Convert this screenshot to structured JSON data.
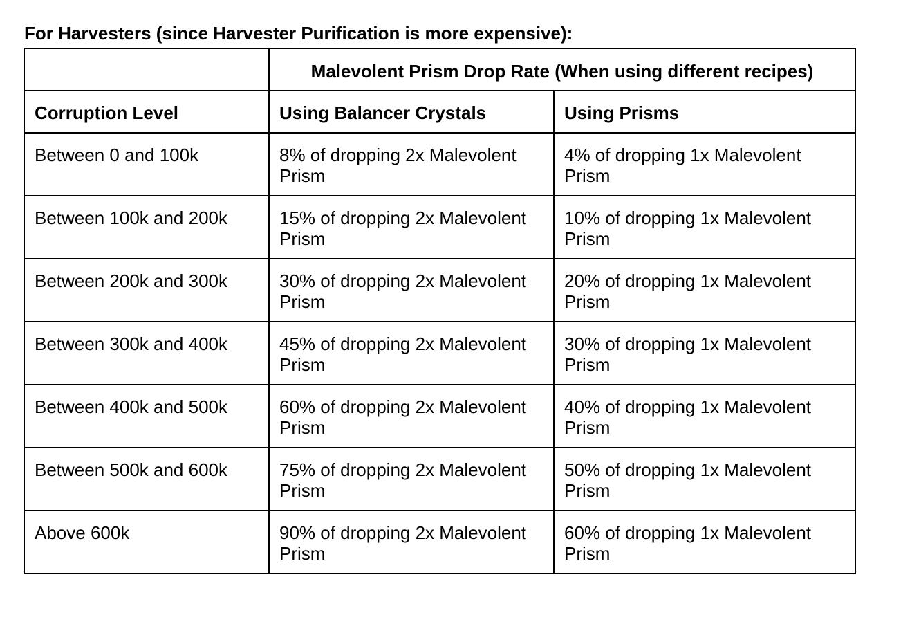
{
  "title": "For Harvesters (since Harvester Purification is more expensive):",
  "table": {
    "group_header": "Malevolent Prism Drop Rate (When using different recipes)",
    "headers": [
      "Corruption Level",
      "Using Balancer Crystals",
      "Using Prisms"
    ],
    "rows": [
      [
        "Between 0 and 100k",
        "8% of dropping 2x Malevolent Prism",
        "4% of dropping 1x Malevolent Prism"
      ],
      [
        "Between 100k and 200k",
        "15% of dropping 2x Malevolent Prism",
        "10% of dropping 1x Malevolent Prism"
      ],
      [
        "Between 200k and 300k",
        "30% of dropping 2x Malevolent Prism",
        "20% of dropping 1x Malevolent Prism"
      ],
      [
        "Between 300k and 400k",
        "45% of dropping 2x Malevolent Prism",
        "30% of dropping 1x Malevolent Prism"
      ],
      [
        "Between 400k and 500k",
        "60% of dropping 2x Malevolent Prism",
        "40% of dropping 1x Malevolent Prism"
      ],
      [
        "Between 500k and 600k",
        "75% of dropping 2x Malevolent Prism",
        "50% of dropping 1x Malevolent Prism"
      ],
      [
        "Above 600k",
        "90% of dropping 2x Malevolent Prism",
        "60% of dropping 1x Malevolent Prism"
      ]
    ]
  }
}
